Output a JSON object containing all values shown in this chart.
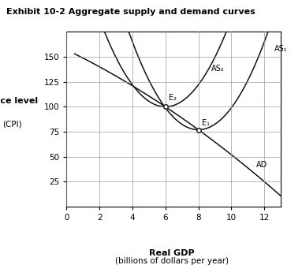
{
  "title": "Exhibit 10-2 Aggregate supply and demand curves",
  "xlabel": "Real GDP",
  "xlabel2": "(billions of dollars per year)",
  "ylabel1": "Price level",
  "ylabel2": "(CPI)",
  "xlim": [
    0,
    13
  ],
  "ylim": [
    0,
    175
  ],
  "xticks": [
    0,
    2,
    4,
    6,
    8,
    10,
    12
  ],
  "yticks": [
    25,
    50,
    75,
    100,
    125,
    150
  ],
  "E1": [
    8,
    77
  ],
  "E2": [
    6,
    100
  ],
  "AS1_label": "AS₁",
  "AS2_label": "AS₂",
  "AD_label": "AD",
  "E1_label": "E₁",
  "E2_label": "E₂",
  "background": "#ffffff",
  "curve_color": "#111111",
  "grid_color": "#999999"
}
